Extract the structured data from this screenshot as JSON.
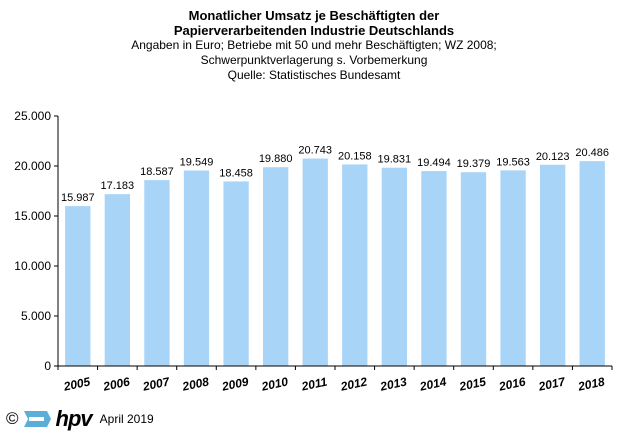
{
  "chart_data": {
    "type": "bar",
    "title": [
      "Monatlicher Umsatz je Beschäftigten der",
      "Papierverarbeitenden Industrie Deutschlands"
    ],
    "subtitle": [
      "Angaben  in Euro; Betriebe mit 50 und mehr Beschäftigten; WZ 2008;",
      "Schwerpunktverlagerung  s. Vorbemerkung",
      "Quelle: Statistisches Bundesamt"
    ],
    "categories": [
      "2005",
      "2006",
      "2007",
      "2008",
      "2009",
      "2010",
      "2011",
      "2012",
      "2013",
      "2014",
      "2015",
      "2016",
      "2017",
      "2018"
    ],
    "values": [
      15987,
      17183,
      18587,
      19549,
      18458,
      19880,
      20743,
      20158,
      19831,
      19494,
      19379,
      19563,
      20123,
      20486
    ],
    "value_labels": [
      "15.987",
      "17.183",
      "18.587",
      "19.549",
      "18.458",
      "19.880",
      "20.743",
      "20.158",
      "19.831",
      "19.494",
      "19.379",
      "19.563",
      "20.123",
      "20.486"
    ],
    "y_ticks": [
      0,
      5000,
      10000,
      15000,
      20000,
      25000
    ],
    "y_tick_labels": [
      "0",
      "5.000",
      "10.000",
      "15.000",
      "20.000",
      "25.000"
    ],
    "ylim": [
      0,
      25000
    ],
    "xlabel": "",
    "ylabel": "",
    "grid": false,
    "bar_color": "#a8d4f8",
    "axis_color": "#000000"
  },
  "footer": {
    "copyright": "©",
    "logo_text": "hpv",
    "date": "April 2019",
    "logo_color": "#5aaed8"
  }
}
